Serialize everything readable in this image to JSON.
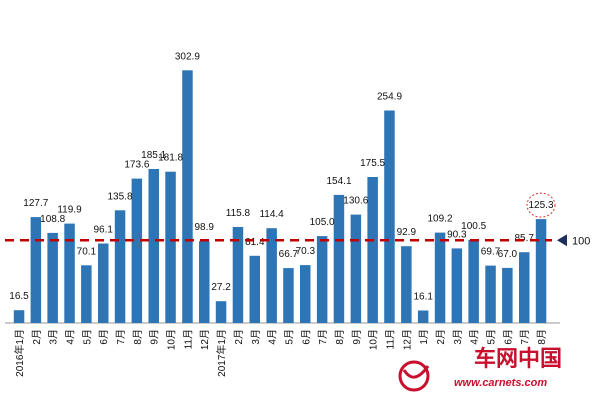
{
  "chart_data": {
    "type": "bar",
    "categories": [
      "2016年1月",
      "2月",
      "3月",
      "4月",
      "5月",
      "6月",
      "7月",
      "8月",
      "9月",
      "10月",
      "11月",
      "12月",
      "2017年1月",
      "2月",
      "3月",
      "4月",
      "5月",
      "6月",
      "7月",
      "8月",
      "9月",
      "10月",
      "11月",
      "12月",
      "1月",
      "2月",
      "3月",
      "4月",
      "5月",
      "6月",
      "7月",
      "8月"
    ],
    "values": [
      16.5,
      127.7,
      108.8,
      119.9,
      70.1,
      96.1,
      135.8,
      173.6,
      185.1,
      181.8,
      302.9,
      98.9,
      27.2,
      115.8,
      81.4,
      114.4,
      66.7,
      70.3,
      105.0,
      154.1,
      130.6,
      175.5,
      254.9,
      92.9,
      16.1,
      109.2,
      90.3,
      100.5,
      69.7,
      67.0,
      85.7,
      125.3
    ],
    "value_labels": [
      "16.5",
      "127.7",
      "108.8",
      "119.9",
      "70.1",
      "96.1",
      "135.8",
      "173.6",
      "185.1",
      "181.8",
      "302.9",
      "98.9",
      "27.2",
      "115.8",
      "81.4",
      "114.4",
      "66.7",
      "70.3",
      "105.0",
      "154.1",
      "130.6",
      "175.5",
      "254.9",
      "92.9",
      "16.1",
      "109.2",
      "90.3",
      "100.5",
      "69.7",
      "67.0",
      "85.7",
      "125.3"
    ],
    "reference_line": {
      "value": 100,
      "label": "100",
      "color": "#c00000",
      "style": "dashed"
    },
    "highlight_index": 31,
    "title": "",
    "xlabel": "",
    "ylabel": "",
    "ylim": [
      0,
      330
    ],
    "grid": false,
    "legend": "none",
    "bar_color": "#2e75b6"
  },
  "watermark": {
    "name": "车网中国",
    "url": "www.carnets.com",
    "color": "#c8102e"
  }
}
